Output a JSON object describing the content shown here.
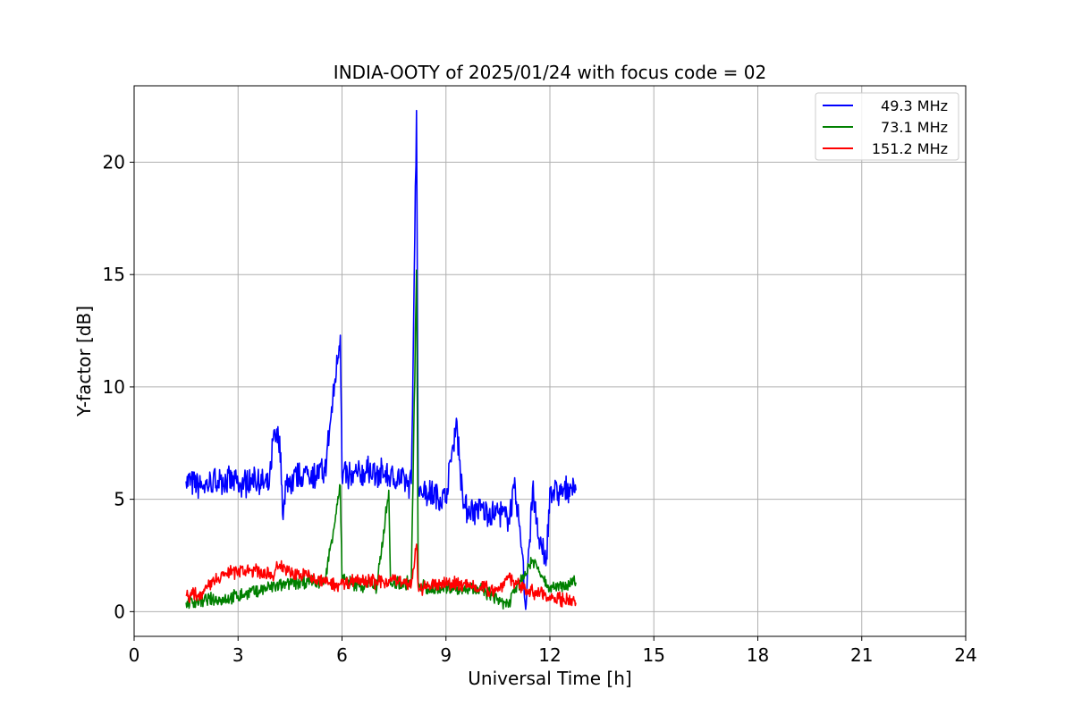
{
  "chart_data": {
    "type": "line",
    "title": "INDIA-OOTY of 2025/01/24 with focus code = 02",
    "xlabel": "Universal Time [h]",
    "ylabel": "Y-factor [dB]",
    "xlim": [
      0,
      24
    ],
    "ylim": [
      -1.1,
      23.4
    ],
    "xticks": [
      0,
      3,
      6,
      9,
      12,
      15,
      18,
      21,
      24
    ],
    "yticks": [
      0,
      5,
      10,
      15,
      20
    ],
    "grid": true,
    "legend_position": "top-right",
    "series": [
      {
        "name": "49.3 MHz",
        "color": "#0000ff",
        "x": [
          1.5,
          2.0,
          2.5,
          3.0,
          3.5,
          3.9,
          4.0,
          4.2,
          4.3,
          4.4,
          4.6,
          5.0,
          5.5,
          5.95,
          6.0,
          6.05,
          6.3,
          6.8,
          7.2,
          7.6,
          8.0,
          8.15,
          8.2,
          8.25,
          8.5,
          9.0,
          9.3,
          9.5,
          10.0,
          10.5,
          10.8,
          11.0,
          11.2,
          11.3,
          11.5,
          11.7,
          11.9,
          12.0,
          12.3,
          12.6,
          12.75
        ],
        "y": [
          5.8,
          5.6,
          5.9,
          5.7,
          5.8,
          5.6,
          7.6,
          7.8,
          4.1,
          5.8,
          5.9,
          6.1,
          6.2,
          12.3,
          6.0,
          6.3,
          6.0,
          6.3,
          6.1,
          5.9,
          5.7,
          22.3,
          5.6,
          5.5,
          5.3,
          5.0,
          8.6,
          4.6,
          4.5,
          4.4,
          4.1,
          5.5,
          2.6,
          0.1,
          5.5,
          2.8,
          2.4,
          5.5,
          5.2,
          5.6,
          5.4
        ]
      },
      {
        "name": "73.1 MHz",
        "color": "#008000",
        "x": [
          1.5,
          2.0,
          2.5,
          3.0,
          3.5,
          4.0,
          4.5,
          5.0,
          5.5,
          5.95,
          6.0,
          6.05,
          6.5,
          6.8,
          7.0,
          7.35,
          7.4,
          8.0,
          8.15,
          8.2,
          8.25,
          8.5,
          9.0,
          9.5,
          10.0,
          10.5,
          10.8,
          11.0,
          11.5,
          12.0,
          12.5,
          12.75
        ],
        "y": [
          0.4,
          0.5,
          0.55,
          0.7,
          0.9,
          1.1,
          1.2,
          1.35,
          1.3,
          5.6,
          1.3,
          1.4,
          1.1,
          1.3,
          1.0,
          5.4,
          1.2,
          1.3,
          15.2,
          1.3,
          1.2,
          1.0,
          1.1,
          1.0,
          1.0,
          0.6,
          0.2,
          1.0,
          2.3,
          1.1,
          1.2,
          1.3
        ]
      },
      {
        "name": "151.2 MHz",
        "color": "#ff0000",
        "x": [
          1.5,
          2.0,
          2.3,
          2.6,
          3.0,
          3.5,
          4.0,
          4.2,
          4.5,
          5.0,
          5.5,
          6.0,
          6.5,
          7.0,
          7.5,
          8.0,
          8.15,
          8.2,
          8.25,
          8.5,
          9.0,
          9.5,
          10.0,
          10.5,
          10.8,
          11.0,
          11.5,
          12.0,
          12.5,
          12.75
        ],
        "y": [
          0.7,
          0.8,
          1.4,
          1.7,
          1.8,
          1.8,
          1.6,
          2.1,
          1.7,
          1.6,
          1.3,
          1.2,
          1.5,
          1.3,
          1.4,
          1.2,
          3.0,
          1.1,
          1.0,
          1.1,
          1.3,
          1.2,
          1.1,
          0.9,
          1.6,
          1.2,
          0.9,
          0.7,
          0.5,
          0.4
        ]
      }
    ]
  }
}
